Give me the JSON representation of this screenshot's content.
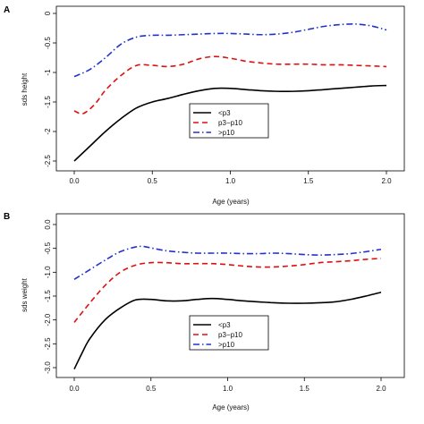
{
  "chart_data": [
    {
      "type": "line",
      "panel_label": "A",
      "xlabel": "Age (years)",
      "ylabel": "sds height",
      "xlim": [
        0,
        2.0
      ],
      "ylim": [
        -2.5,
        0
      ],
      "xticks": [
        "0.0",
        "0.5",
        "1.0",
        "1.5",
        "2.0"
      ],
      "yticks": [
        "0",
        "-0.5",
        "-1",
        "-1.5",
        "-2",
        "-2.5"
      ],
      "grid": false,
      "legend_position": "center",
      "series": [
        {
          "name": "<p3",
          "color": "#000000",
          "dash": "solid",
          "x": [
            0,
            0.1,
            0.2,
            0.3,
            0.4,
            0.5,
            0.6,
            0.7,
            0.8,
            0.9,
            1.0,
            1.1,
            1.2,
            1.3,
            1.4,
            1.5,
            1.6,
            1.7,
            1.8,
            1.9,
            2.0
          ],
          "y": [
            -2.5,
            -2.25,
            -2.0,
            -1.78,
            -1.6,
            -1.5,
            -1.44,
            -1.37,
            -1.31,
            -1.27,
            -1.27,
            -1.29,
            -1.31,
            -1.32,
            -1.32,
            -1.31,
            -1.29,
            -1.27,
            -1.25,
            -1.23,
            -1.22
          ]
        },
        {
          "name": "p3−p10",
          "color": "#dd1111",
          "dash": "dashed",
          "x": [
            0,
            0.05,
            0.1,
            0.15,
            0.2,
            0.3,
            0.4,
            0.5,
            0.6,
            0.7,
            0.8,
            0.9,
            1.0,
            1.1,
            1.2,
            1.3,
            1.4,
            1.5,
            1.6,
            1.7,
            1.8,
            1.9,
            2.0
          ],
          "y": [
            -1.65,
            -1.7,
            -1.62,
            -1.48,
            -1.3,
            -1.05,
            -0.88,
            -0.88,
            -0.9,
            -0.86,
            -0.77,
            -0.73,
            -0.76,
            -0.81,
            -0.84,
            -0.86,
            -0.86,
            -0.86,
            -0.87,
            -0.87,
            -0.88,
            -0.89,
            -0.9
          ]
        },
        {
          "name": ">p10",
          "color": "#2233cc",
          "dash": "dotdash",
          "x": [
            0,
            0.1,
            0.2,
            0.3,
            0.4,
            0.5,
            0.6,
            0.7,
            0.8,
            0.9,
            1.0,
            1.1,
            1.2,
            1.3,
            1.4,
            1.5,
            1.6,
            1.7,
            1.8,
            1.9,
            2.0
          ],
          "y": [
            -1.07,
            -0.95,
            -0.75,
            -0.52,
            -0.4,
            -0.37,
            -0.37,
            -0.36,
            -0.35,
            -0.34,
            -0.34,
            -0.35,
            -0.36,
            -0.35,
            -0.32,
            -0.27,
            -0.22,
            -0.19,
            -0.18,
            -0.21,
            -0.28
          ]
        }
      ]
    },
    {
      "type": "line",
      "panel_label": "B",
      "xlabel": "Age (years)",
      "ylabel": "sds weight",
      "xlim": [
        0,
        2.0
      ],
      "ylim": [
        -3.0,
        0
      ],
      "xticks": [
        "0.0",
        "0.5",
        "1.0",
        "1.5",
        "2.0"
      ],
      "yticks": [
        "0.0",
        "-0.5",
        "-1.0",
        "-1.5",
        "-2.0",
        "-2.5",
        "-3.0"
      ],
      "grid": false,
      "legend_position": "bottom-center",
      "series": [
        {
          "name": "<p3",
          "color": "#000000",
          "dash": "solid",
          "x": [
            0,
            0.05,
            0.1,
            0.2,
            0.3,
            0.4,
            0.5,
            0.6,
            0.7,
            0.8,
            0.9,
            1.0,
            1.1,
            1.2,
            1.3,
            1.4,
            1.5,
            1.6,
            1.7,
            1.8,
            1.9,
            2.0
          ],
          "y": [
            -3.03,
            -2.7,
            -2.4,
            -2.0,
            -1.75,
            -1.58,
            -1.57,
            -1.6,
            -1.6,
            -1.57,
            -1.55,
            -1.57,
            -1.6,
            -1.62,
            -1.64,
            -1.65,
            -1.65,
            -1.64,
            -1.62,
            -1.57,
            -1.5,
            -1.42
          ]
        },
        {
          "name": "p3−p10",
          "color": "#dd1111",
          "dash": "dashed",
          "x": [
            0,
            0.1,
            0.2,
            0.3,
            0.4,
            0.5,
            0.6,
            0.7,
            0.8,
            0.9,
            1.0,
            1.1,
            1.2,
            1.3,
            1.4,
            1.5,
            1.6,
            1.7,
            1.8,
            1.9,
            2.0
          ],
          "y": [
            -2.05,
            -1.65,
            -1.28,
            -1.0,
            -0.85,
            -0.8,
            -0.8,
            -0.82,
            -0.82,
            -0.82,
            -0.84,
            -0.87,
            -0.89,
            -0.89,
            -0.87,
            -0.84,
            -0.8,
            -0.78,
            -0.76,
            -0.73,
            -0.71
          ]
        },
        {
          "name": ">p10",
          "color": "#2233cc",
          "dash": "dotdash",
          "x": [
            0,
            0.1,
            0.2,
            0.3,
            0.4,
            0.45,
            0.5,
            0.6,
            0.7,
            0.8,
            0.9,
            1.0,
            1.1,
            1.2,
            1.3,
            1.4,
            1.5,
            1.6,
            1.7,
            1.8,
            1.9,
            2.0
          ],
          "y": [
            -1.15,
            -0.95,
            -0.75,
            -0.57,
            -0.47,
            -0.46,
            -0.49,
            -0.55,
            -0.58,
            -0.6,
            -0.6,
            -0.6,
            -0.61,
            -0.61,
            -0.6,
            -0.61,
            -0.63,
            -0.64,
            -0.63,
            -0.61,
            -0.57,
            -0.52
          ]
        }
      ]
    }
  ]
}
